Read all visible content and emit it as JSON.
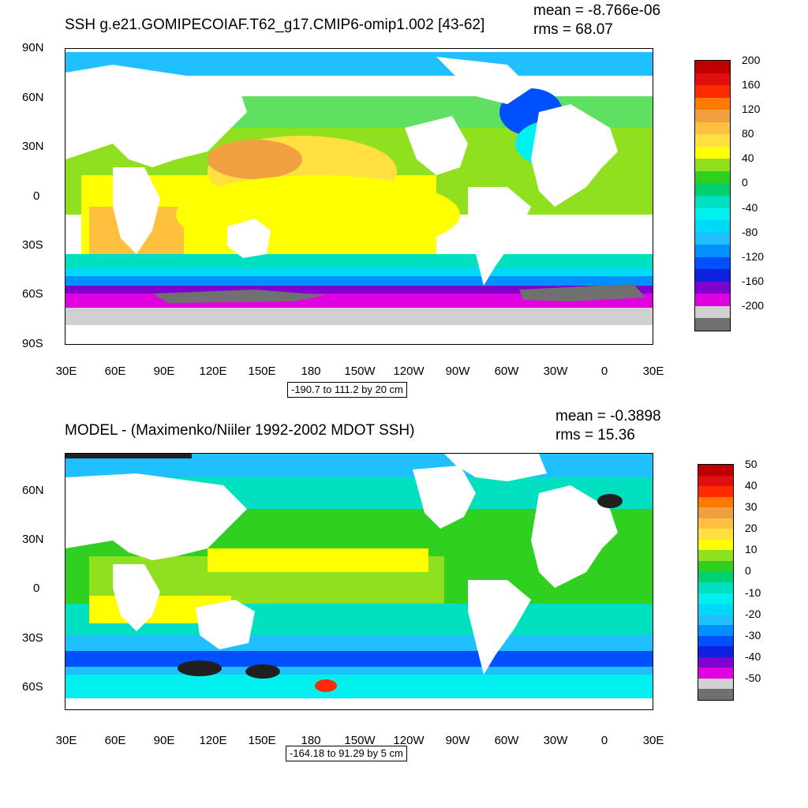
{
  "top_panel": {
    "title": "SSH g.e21.GOMIPECOIAF.T62_g17.CMIP6-omip1.002 [43-62]",
    "mean": "mean = -8.766e-06",
    "rms": "rms = 68.07",
    "range": "-190.7 to 111.2 by 20 cm",
    "lat_labels": [
      "90N",
      "60N",
      "30N",
      "0",
      "30S",
      "60S",
      "90S"
    ],
    "lon_labels": [
      "30E",
      "60E",
      "90E",
      "120E",
      "150E",
      "180",
      "150W",
      "120W",
      "90W",
      "60W",
      "30W",
      "0",
      "30E"
    ],
    "colorbar": {
      "labels": [
        "200",
        "160",
        "120",
        "80",
        "40",
        "0",
        "-40",
        "-80",
        "-120",
        "-160",
        "-200"
      ],
      "colors": [
        "#c00000",
        "#e01010",
        "#ff2a00",
        "#ff7a00",
        "#f0a040",
        "#ffc040",
        "#ffe040",
        "#ffff00",
        "#90e020",
        "#30d020",
        "#00d070",
        "#00e0c0",
        "#00f0f0",
        "#00d8f8",
        "#20c0ff",
        "#0090ff",
        "#0050ff",
        "#1020e0",
        "#8000d0",
        "#e000e0",
        "#d0d0d0",
        "#707070"
      ]
    }
  },
  "bottom_panel": {
    "title": "MODEL - (Maximenko/Niiler 1992-2002 MDOT SSH)",
    "mean": "mean = -0.3898",
    "rms": "rms = 15.36",
    "range": "-164.18 to 91.29 by 5 cm",
    "lat_labels": [
      "60N",
      "30N",
      "0",
      "30S",
      "60S"
    ],
    "lon_labels": [
      "30E",
      "60E",
      "90E",
      "120E",
      "150E",
      "180",
      "150W",
      "120W",
      "90W",
      "60W",
      "30W",
      "0",
      "30E"
    ],
    "colorbar": {
      "labels": [
        "50",
        "40",
        "30",
        "20",
        "10",
        "0",
        "-10",
        "-20",
        "-30",
        "-40",
        "-50"
      ],
      "colors": [
        "#c00000",
        "#e01010",
        "#ff2a00",
        "#ff7a00",
        "#f0a040",
        "#ffc040",
        "#ffe040",
        "#ffff00",
        "#90e020",
        "#30d020",
        "#00d070",
        "#00e0c0",
        "#00f0f0",
        "#00d8f8",
        "#20c0ff",
        "#0090ff",
        "#0050ff",
        "#1020e0",
        "#8000d0",
        "#e000e0",
        "#d0d0d0",
        "#707070"
      ]
    }
  }
}
